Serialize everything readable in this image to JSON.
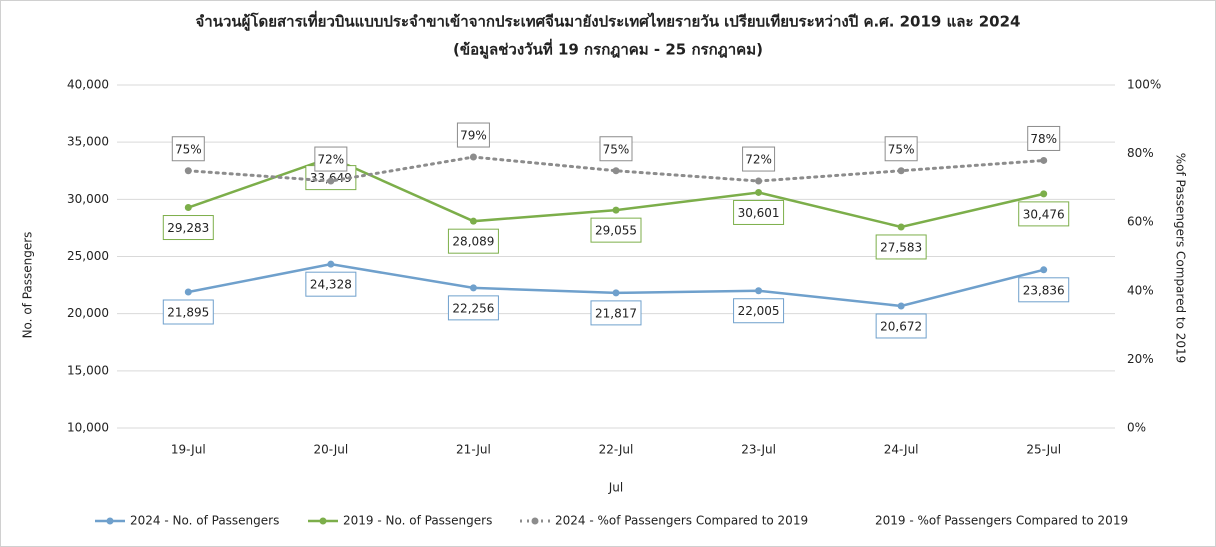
{
  "chart_data": {
    "type": "line",
    "title": "จำนวนผู้โดยสารเที่ยวบินแบบประจำขาเข้าจากประเทศจีนมายังประเทศไทยรายวัน เปรียบเทียบระหว่างปี ค.ศ. 2019 และ 2024",
    "subtitle": "(ข้อมูลช่วงวันที่ 19 กรกฎาคม - 25 กรกฎาคม)",
    "x_label": "Jul",
    "y_label": "No. of Passengers",
    "y2_label": "%of Passengers Compared to 2019",
    "categories": [
      "19-Jul",
      "20-Jul",
      "21-Jul",
      "22-Jul",
      "23-Jul",
      "24-Jul",
      "25-Jul"
    ],
    "series": [
      {
        "name": "2024 - No. of Passengers",
        "color": "#6fa0cc",
        "line": "solid",
        "values": [
          21895,
          24328,
          22256,
          21817,
          22005,
          20672,
          23836
        ],
        "value_labels": [
          "21,895",
          "24,328",
          "22,256",
          "21,817",
          "22,005",
          "20,672",
          "23,836"
        ]
      },
      {
        "name": "2019 - No. of Passengers",
        "color": "#7cae4a",
        "line": "solid",
        "values": [
          29283,
          33649,
          28089,
          29055,
          30601,
          27583,
          30476
        ],
        "value_labels": [
          "29,283",
          "33,649",
          "28,089",
          "29,055",
          "30,601",
          "27,583",
          "30,476"
        ]
      },
      {
        "name": "2024 - %of Passengers Compared to 2019",
        "color": "#8c8c8c",
        "line": "dotted",
        "axis": "y2",
        "values": [
          75,
          72,
          79,
          75,
          72,
          75,
          78
        ],
        "value_labels": [
          "75%",
          "72%",
          "79%",
          "75%",
          "72%",
          "75%",
          "78%"
        ]
      },
      {
        "name": "2019 - %of Passengers Compared to 2019",
        "axis": "y2",
        "values": [
          null,
          null,
          null,
          null,
          null,
          null,
          null
        ]
      }
    ],
    "ylim": [
      10000,
      40000
    ],
    "yticks": [
      {
        "value": 10000,
        "label": "10,000"
      },
      {
        "value": 15000,
        "label": "15,000"
      },
      {
        "value": 20000,
        "label": "20,000"
      },
      {
        "value": 25000,
        "label": "25,000"
      },
      {
        "value": 30000,
        "label": "30,000"
      },
      {
        "value": 35000,
        "label": "35,000"
      },
      {
        "value": 40000,
        "label": "40,000"
      }
    ],
    "y2lim": [
      0,
      100
    ],
    "y2ticks": [
      {
        "value": 0,
        "label": "0%"
      },
      {
        "value": 20,
        "label": "20%"
      },
      {
        "value": 40,
        "label": "40%"
      },
      {
        "value": 60,
        "label": "60%"
      },
      {
        "value": 80,
        "label": "80%"
      },
      {
        "value": 100,
        "label": "100%"
      }
    ],
    "grid": true,
    "legend": "bottom"
  }
}
